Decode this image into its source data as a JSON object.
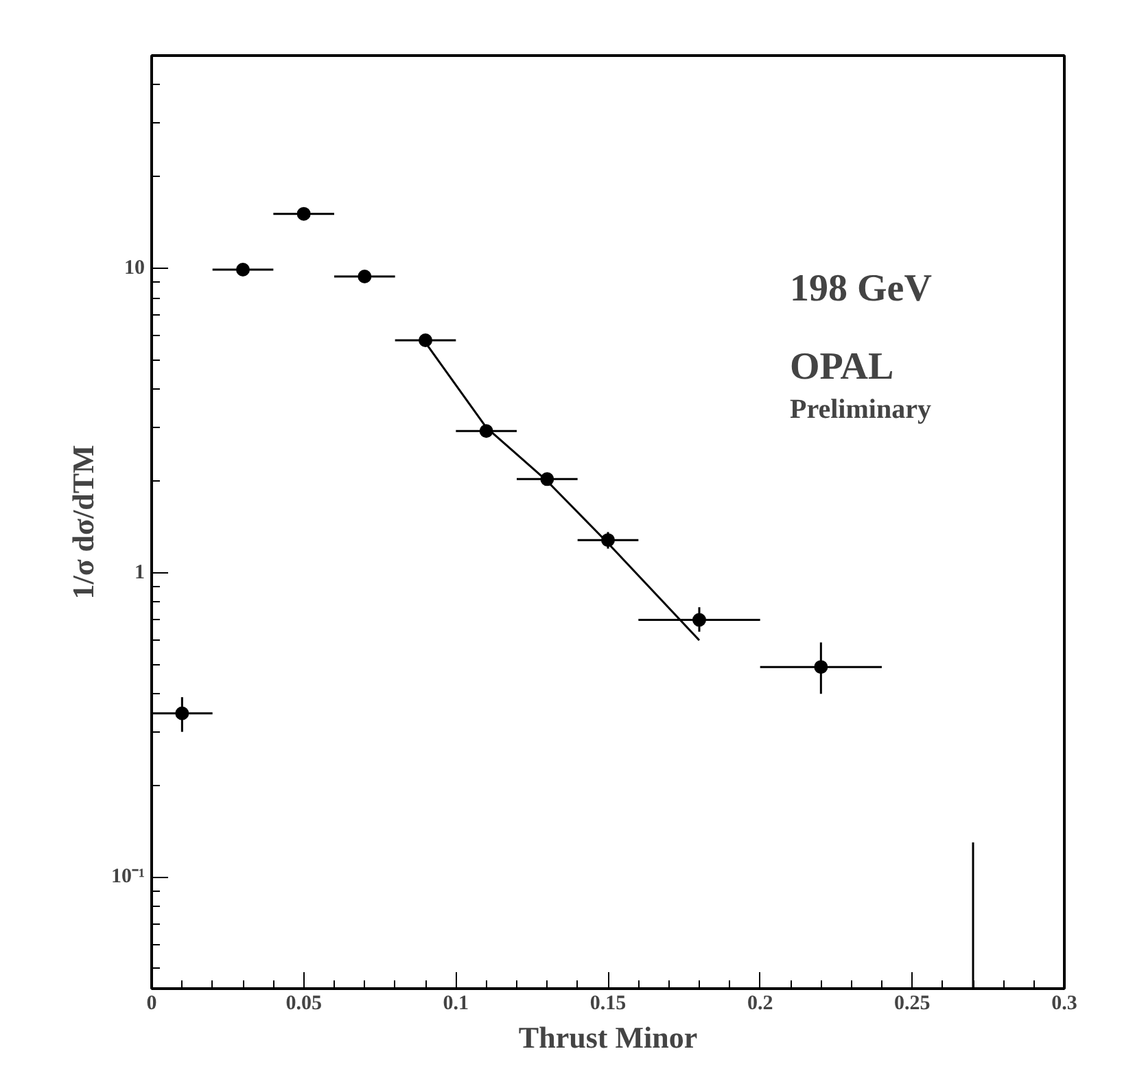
{
  "chart_data": {
    "type": "scatter",
    "xlabel": "Thrust Minor",
    "ylabel": "1/σ dσ/dTM",
    "log": "y",
    "grid": false,
    "xlim": [
      0,
      0.3
    ],
    "xticks": [
      0,
      0.05,
      0.1,
      0.15,
      0.2,
      0.25,
      0.3
    ],
    "ylim": [
      0.043,
      50
    ],
    "yticks": [
      {
        "value": 0.1,
        "label": "10⁻¹"
      },
      1,
      10
    ],
    "annotations": [
      "198 GeV",
      "OPAL",
      "Preliminary"
    ],
    "series": [
      {
        "type": "scatter",
        "marker": "circle",
        "color": "#000000",
        "x": [
          0.01,
          0.03,
          0.05,
          0.07,
          0.09,
          0.11,
          0.13,
          0.15,
          0.18,
          0.22
        ],
        "values": [
          0.345,
          9.9,
          15.1,
          9.4,
          5.8,
          2.92,
          2.03,
          1.28,
          0.7,
          0.49
        ],
        "errors": [
          [
            0.3,
            0.39
          ],
          null,
          null,
          null,
          null,
          null,
          null,
          [
            1.2,
            1.36
          ],
          [
            0.64,
            0.77
          ],
          [
            0.4,
            0.59
          ]
        ],
        "xerrors": [
          0.01,
          0.01,
          0.01,
          0.01,
          0.01,
          0.01,
          0.01,
          0.01,
          0.02,
          0.02
        ]
      },
      {
        "type": "line",
        "color": "#000000",
        "x": [
          0.09,
          0.11,
          0.13,
          0.15,
          0.18
        ],
        "values": [
          5.7,
          3.0,
          2.0,
          1.25,
          0.6
        ]
      },
      {
        "type": "line",
        "color": "#000000",
        "x": [
          0.27,
          0.27
        ],
        "values": [
          0.043,
          0.13
        ]
      }
    ]
  }
}
